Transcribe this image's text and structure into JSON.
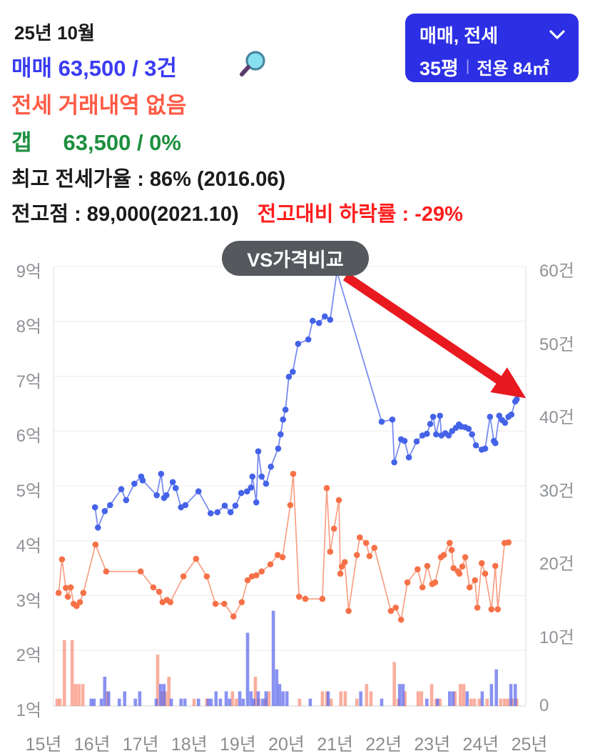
{
  "header": {
    "month": "25년 10월",
    "sale_line": "매매 63,500 / 3건",
    "jeonse_line": "전세 거래내역 없음",
    "gap_label": "갭",
    "gap_value": "63,500 / 0%",
    "peak_jeonse_ratio": "최고 전세가율 : 86% (2016.06)",
    "prev_peak": "전고점 : 89,000(2021.10)",
    "drop_from_peak": "전고대비 하락률 : -29%",
    "colors": {
      "sale_text": "#3a3cf2",
      "jeonse_text": "#ff5a45",
      "gap_text": "#1d8f3f",
      "drop_text": "#ff1d1d"
    }
  },
  "selector": {
    "line1": "매매, 전세",
    "pyeong": "35평",
    "divider": "|",
    "area": "전용 84㎡",
    "background": "#2c2fe4"
  },
  "chart_data": {
    "type": "composite",
    "badge": "VS가격비교",
    "legend_position": "none",
    "grid": true,
    "x_axis": {
      "start_year": 2015,
      "unit": "년",
      "tick_values": [
        2015,
        2016,
        2017,
        2018,
        2019,
        2020,
        2021,
        2022,
        2023,
        2024,
        2025
      ],
      "tick_labels": [
        "15년",
        "16년",
        "17년",
        "18년",
        "19년",
        "20년",
        "21년",
        "22년",
        "23년",
        "24년",
        "25년"
      ]
    },
    "y_left": {
      "unit": "억",
      "min": 1,
      "max": 9,
      "values": [
        9,
        8,
        7,
        6,
        5,
        4,
        3,
        2,
        1
      ],
      "labels": [
        "9억",
        "8억",
        "7억",
        "6억",
        "5억",
        "4억",
        "3억",
        "2억",
        "1억"
      ]
    },
    "y_right": {
      "unit": "건",
      "min": 0,
      "max": 60,
      "values": [
        60,
        50,
        40,
        30,
        20,
        10,
        0
      ],
      "labels": [
        "60건",
        "50건",
        "40건",
        "30건",
        "20건",
        "10건",
        "0"
      ]
    },
    "series": {
      "sale_price": {
        "kind": "line",
        "line_color": "#7386ef",
        "marker_color": "#4463e8",
        "points": [
          [
            2016.06,
            4.61
          ],
          [
            2016.12,
            4.24
          ],
          [
            2016.26,
            4.54
          ],
          [
            2016.37,
            4.65
          ],
          [
            2016.6,
            4.94
          ],
          [
            2016.7,
            4.74
          ],
          [
            2016.87,
            5.04
          ],
          [
            2017.01,
            5.17
          ],
          [
            2017.04,
            5.1
          ],
          [
            2017.33,
            4.83
          ],
          [
            2017.42,
            5.22
          ],
          [
            2017.48,
            4.78
          ],
          [
            2017.53,
            4.83
          ],
          [
            2017.66,
            5.07
          ],
          [
            2017.72,
            4.96
          ],
          [
            2017.83,
            4.61
          ],
          [
            2017.92,
            4.65
          ],
          [
            2018.19,
            4.9
          ],
          [
            2018.44,
            4.5
          ],
          [
            2018.58,
            4.52
          ],
          [
            2018.73,
            4.64
          ],
          [
            2018.85,
            4.52
          ],
          [
            2018.95,
            4.64
          ],
          [
            2019.07,
            4.87
          ],
          [
            2019.19,
            4.9
          ],
          [
            2019.27,
            4.97
          ],
          [
            2019.3,
            5.17
          ],
          [
            2019.38,
            4.7
          ],
          [
            2019.42,
            5.63
          ],
          [
            2019.49,
            5.17
          ],
          [
            2019.58,
            5.04
          ],
          [
            2019.68,
            5.35
          ],
          [
            2019.83,
            5.68
          ],
          [
            2019.88,
            5.94
          ],
          [
            2019.93,
            6.21
          ],
          [
            2019.98,
            6.39
          ],
          [
            2020.05,
            6.99
          ],
          [
            2020.13,
            7.08
          ],
          [
            2020.24,
            7.59
          ],
          [
            2020.45,
            7.67
          ],
          [
            2020.54,
            8.01
          ],
          [
            2020.67,
            7.97
          ],
          [
            2020.79,
            8.09
          ],
          [
            2020.9,
            8.03
          ],
          [
            2021.04,
            8.9
          ],
          [
            2021.96,
            6.17
          ],
          [
            2022.18,
            6.21
          ],
          [
            2022.22,
            5.43
          ],
          [
            2022.36,
            5.85
          ],
          [
            2022.43,
            5.82
          ],
          [
            2022.52,
            5.52
          ],
          [
            2022.68,
            5.81
          ],
          [
            2022.8,
            5.92
          ],
          [
            2022.89,
            5.95
          ],
          [
            2022.96,
            6.13
          ],
          [
            2023.02,
            6.26
          ],
          [
            2023.08,
            5.94
          ],
          [
            2023.16,
            6.28
          ],
          [
            2023.19,
            5.92
          ],
          [
            2023.27,
            5.96
          ],
          [
            2023.34,
            5.92
          ],
          [
            2023.41,
            6.0
          ],
          [
            2023.49,
            6.06
          ],
          [
            2023.55,
            6.12
          ],
          [
            2023.6,
            6.08
          ],
          [
            2023.68,
            6.07
          ],
          [
            2023.75,
            6.04
          ],
          [
            2023.82,
            5.94
          ],
          [
            2023.9,
            5.74
          ],
          [
            2024.02,
            5.66
          ],
          [
            2024.09,
            5.68
          ],
          [
            2024.19,
            6.26
          ],
          [
            2024.27,
            5.82
          ],
          [
            2024.3,
            5.78
          ],
          [
            2024.38,
            6.28
          ],
          [
            2024.44,
            6.2
          ],
          [
            2024.5,
            6.15
          ],
          [
            2024.57,
            6.26
          ],
          [
            2024.63,
            6.3
          ],
          [
            2024.71,
            6.54
          ],
          [
            2024.74,
            6.58
          ]
        ]
      },
      "jeonse_price": {
        "kind": "line",
        "line_color": "#f89f85",
        "marker_color": "#f77148",
        "points": [
          [
            2015.31,
            3.05
          ],
          [
            2015.38,
            3.66
          ],
          [
            2015.46,
            3.14
          ],
          [
            2015.5,
            2.98
          ],
          [
            2015.56,
            3.15
          ],
          [
            2015.62,
            2.85
          ],
          [
            2015.68,
            2.81
          ],
          [
            2015.75,
            2.88
          ],
          [
            2015.82,
            3.05
          ],
          [
            2016.07,
            3.93
          ],
          [
            2016.29,
            3.44
          ],
          [
            2017.0,
            3.44
          ],
          [
            2017.26,
            3.15
          ],
          [
            2017.38,
            3.07
          ],
          [
            2017.45,
            2.88
          ],
          [
            2017.54,
            2.92
          ],
          [
            2017.61,
            2.88
          ],
          [
            2017.88,
            3.35
          ],
          [
            2018.14,
            3.67
          ],
          [
            2018.36,
            3.35
          ],
          [
            2018.54,
            2.85
          ],
          [
            2018.72,
            2.85
          ],
          [
            2018.91,
            2.62
          ],
          [
            2019.08,
            2.88
          ],
          [
            2019.2,
            3.28
          ],
          [
            2019.29,
            3.35
          ],
          [
            2019.38,
            3.37
          ],
          [
            2019.49,
            3.44
          ],
          [
            2019.67,
            3.57
          ],
          [
            2019.82,
            3.74
          ],
          [
            2019.92,
            3.7
          ],
          [
            2020.08,
            4.65
          ],
          [
            2020.14,
            5.22
          ],
          [
            2020.26,
            2.98
          ],
          [
            2020.39,
            2.94
          ],
          [
            2020.74,
            2.94
          ],
          [
            2020.83,
            4.96
          ],
          [
            2020.9,
            3.8
          ],
          [
            2020.98,
            4.22
          ],
          [
            2021.08,
            4.74
          ],
          [
            2021.11,
            3.4
          ],
          [
            2021.14,
            3.53
          ],
          [
            2021.2,
            3.61
          ],
          [
            2021.28,
            2.72
          ],
          [
            2021.45,
            3.74
          ],
          [
            2021.51,
            4.06
          ],
          [
            2021.64,
            3.96
          ],
          [
            2021.71,
            3.72
          ],
          [
            2021.81,
            3.87
          ],
          [
            2022.15,
            2.72
          ],
          [
            2022.25,
            2.78
          ],
          [
            2022.36,
            2.56
          ],
          [
            2022.49,
            3.24
          ],
          [
            2022.7,
            3.48
          ],
          [
            2022.8,
            3.15
          ],
          [
            2022.9,
            3.54
          ],
          [
            2023.0,
            3.21
          ],
          [
            2023.06,
            3.24
          ],
          [
            2023.18,
            3.7
          ],
          [
            2023.24,
            3.74
          ],
          [
            2023.36,
            3.96
          ],
          [
            2023.4,
            3.83
          ],
          [
            2023.44,
            3.5
          ],
          [
            2023.53,
            3.44
          ],
          [
            2023.56,
            3.4
          ],
          [
            2023.62,
            3.53
          ],
          [
            2023.68,
            3.7
          ],
          [
            2023.77,
            3.15
          ],
          [
            2023.88,
            3.28
          ],
          [
            2023.93,
            2.78
          ],
          [
            2024.02,
            3.59
          ],
          [
            2024.09,
            3.4
          ],
          [
            2024.22,
            2.75
          ],
          [
            2024.3,
            3.54
          ],
          [
            2024.35,
            2.75
          ],
          [
            2024.49,
            3.96
          ],
          [
            2024.57,
            3.97
          ]
        ]
      },
      "sale_count": {
        "kind": "bar",
        "color": "rgba(92,104,235,0.72)",
        "points": [
          [
            2015.98,
            1
          ],
          [
            2016.04,
            1
          ],
          [
            2016.19,
            1
          ],
          [
            2016.26,
            4
          ],
          [
            2016.34,
            2
          ],
          [
            2016.56,
            1
          ],
          [
            2016.67,
            2
          ],
          [
            2016.89,
            1
          ],
          [
            2016.98,
            2
          ],
          [
            2017.32,
            1
          ],
          [
            2017.41,
            3
          ],
          [
            2017.48,
            3
          ],
          [
            2017.63,
            1
          ],
          [
            2017.83,
            1
          ],
          [
            2017.91,
            1
          ],
          [
            2018.19,
            1
          ],
          [
            2018.39,
            1
          ],
          [
            2018.45,
            1
          ],
          [
            2018.55,
            2
          ],
          [
            2018.64,
            1
          ],
          [
            2018.76,
            2
          ],
          [
            2018.83,
            1
          ],
          [
            2019.04,
            2
          ],
          [
            2019.11,
            1
          ],
          [
            2019.2,
            10
          ],
          [
            2019.27,
            2
          ],
          [
            2019.33,
            1
          ],
          [
            2019.42,
            2
          ],
          [
            2019.51,
            1
          ],
          [
            2019.58,
            2
          ],
          [
            2019.73,
            13
          ],
          [
            2019.8,
            5
          ],
          [
            2019.86,
            3
          ],
          [
            2019.93,
            2
          ],
          [
            2020.01,
            2
          ],
          [
            2020.49,
            1
          ],
          [
            2020.86,
            2
          ],
          [
            2021.53,
            2
          ],
          [
            2021.96,
            1
          ],
          [
            2022.33,
            3
          ],
          [
            2022.4,
            3
          ],
          [
            2022.89,
            1
          ],
          [
            2023.11,
            1
          ],
          [
            2023.36,
            2
          ],
          [
            2023.43,
            2
          ],
          [
            2023.72,
            2
          ],
          [
            2024.03,
            2
          ],
          [
            2024.22,
            3
          ],
          [
            2024.32,
            5
          ],
          [
            2024.62,
            3
          ],
          [
            2024.71,
            3
          ]
        ]
      },
      "jeonse_count": {
        "kind": "bar",
        "color": "rgba(247,124,98,0.62)",
        "points": [
          [
            2015.28,
            1
          ],
          [
            2015.34,
            1
          ],
          [
            2015.43,
            9
          ],
          [
            2015.59,
            9
          ],
          [
            2015.66,
            3
          ],
          [
            2015.73,
            3
          ],
          [
            2015.81,
            3
          ],
          [
            2016.31,
            2
          ],
          [
            2017.35,
            7
          ],
          [
            2017.44,
            2
          ],
          [
            2017.51,
            2
          ],
          [
            2017.58,
            4
          ],
          [
            2018.1,
            1
          ],
          [
            2018.36,
            1
          ],
          [
            2018.89,
            2
          ],
          [
            2018.97,
            1
          ],
          [
            2019.36,
            4
          ],
          [
            2019.43,
            1
          ],
          [
            2019.57,
            1
          ],
          [
            2019.64,
            2
          ],
          [
            2020.27,
            1
          ],
          [
            2020.74,
            2
          ],
          [
            2020.83,
            2
          ],
          [
            2020.92,
            1
          ],
          [
            2021.12,
            2
          ],
          [
            2021.21,
            2
          ],
          [
            2021.45,
            1
          ],
          [
            2021.65,
            3
          ],
          [
            2021.74,
            2
          ],
          [
            2022.22,
            6
          ],
          [
            2022.3,
            1
          ],
          [
            2022.44,
            2
          ],
          [
            2022.71,
            2
          ],
          [
            2022.78,
            2
          ],
          [
            2022.99,
            3
          ],
          [
            2023.08,
            1
          ],
          [
            2023.16,
            1
          ],
          [
            2023.47,
            2
          ],
          [
            2023.58,
            3
          ],
          [
            2023.65,
            3
          ],
          [
            2023.8,
            1
          ],
          [
            2023.87,
            1
          ],
          [
            2023.97,
            1
          ],
          [
            2024.13,
            1
          ],
          [
            2024.41,
            1
          ],
          [
            2024.49,
            1
          ],
          [
            2024.56,
            1
          ],
          [
            2024.65,
            1
          ],
          [
            2024.74,
            1
          ]
        ]
      }
    },
    "annotation_arrow": {
      "color": "#e8191f",
      "from": [
        2021.22,
        8.82
      ],
      "to": [
        2024.93,
        6.6
      ]
    }
  }
}
